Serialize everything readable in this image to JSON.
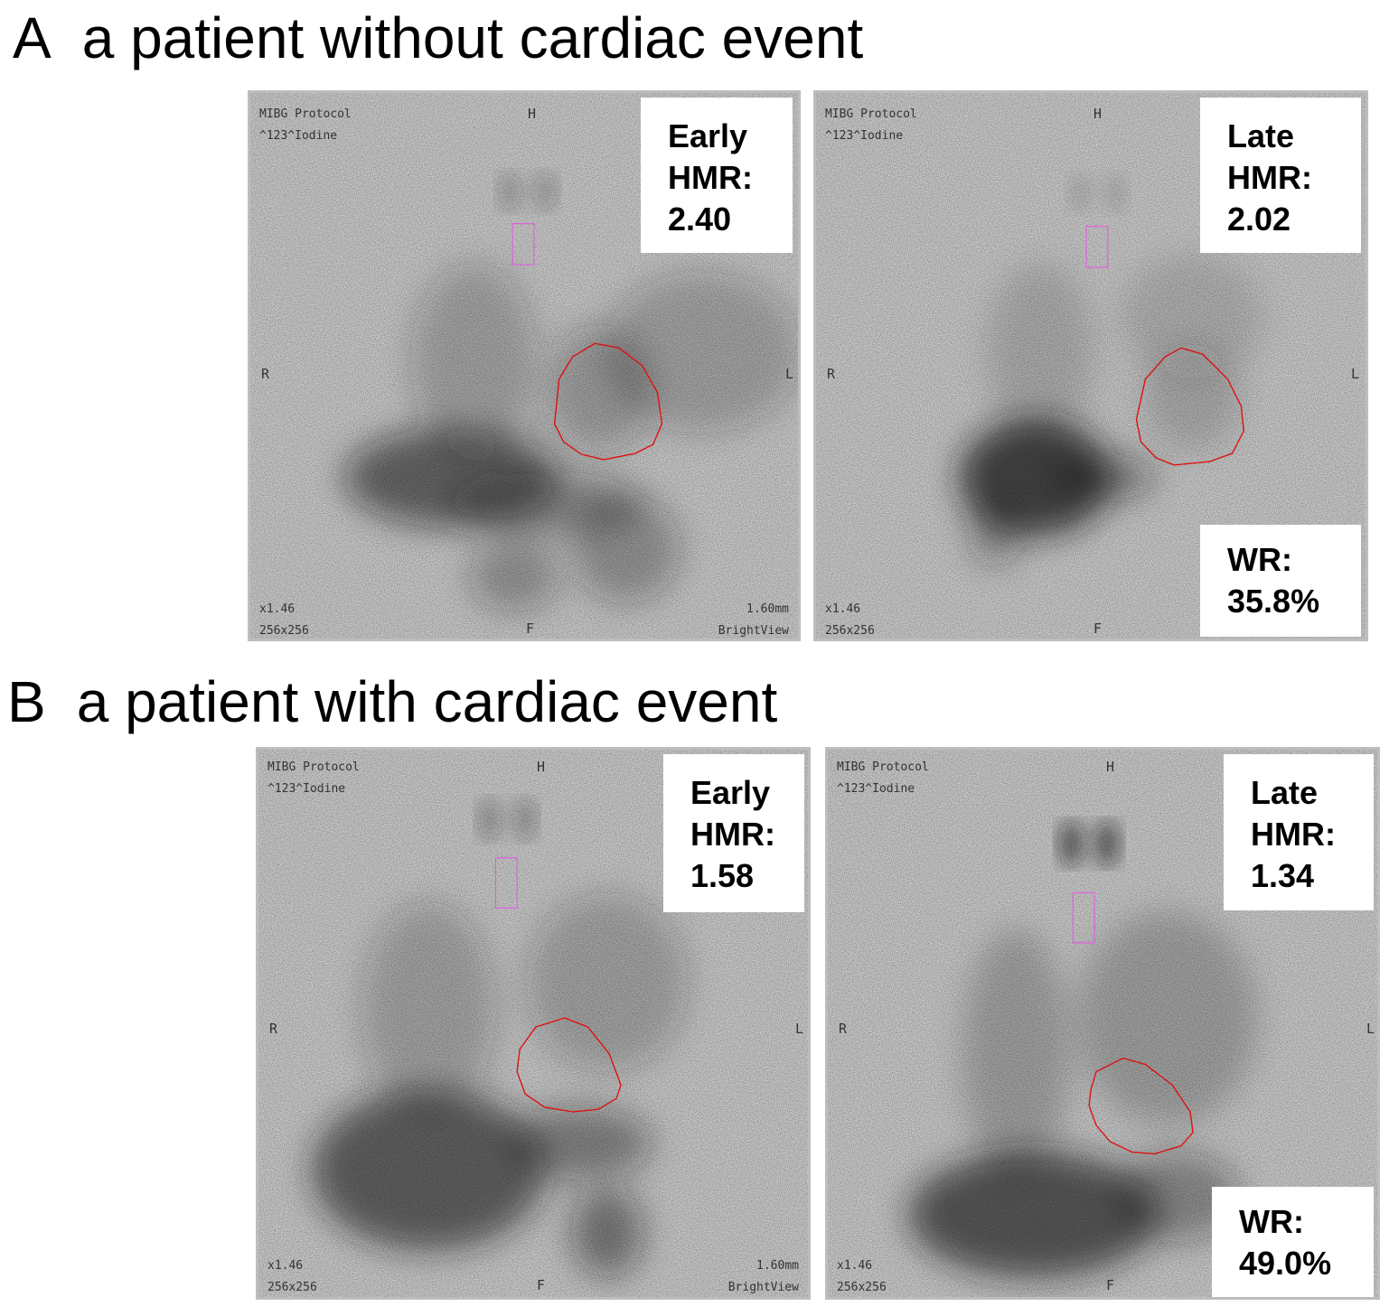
{
  "panels": [
    {
      "letter": "A",
      "caption": "a patient without cardiac event",
      "early": {
        "protocol": "MIBG Protocol",
        "isotope": "^123^Iodine",
        "top": "H",
        "bottom": "F",
        "right_side": "R",
        "left_side": "L",
        "zoom": "x1.46",
        "matrix": "256x256",
        "pixel_size": "1.60mm",
        "device": "BrightView",
        "phase": "Early",
        "metric": "HMR:",
        "value": "2.40"
      },
      "late": {
        "protocol": "MIBG Protocol",
        "isotope": "^123^Iodine",
        "top": "H",
        "bottom": "F",
        "right_side": "R",
        "left_side": "L",
        "zoom": "x1.46",
        "matrix": "256x256",
        "phase": "Late",
        "metric": "HMR:",
        "value": "2.02",
        "wr_label": "WR:",
        "wr_value": "35.8%"
      }
    },
    {
      "letter": "B",
      "caption": "a patient with cardiac event",
      "early": {
        "protocol": "MIBG Protocol",
        "isotope": "^123^Iodine",
        "top": "H",
        "bottom": "F",
        "right_side": "R",
        "left_side": "L",
        "zoom": "x1.46",
        "matrix": "256x256",
        "pixel_size": "1.60mm",
        "device": "BrightView",
        "phase": "Early",
        "metric": "HMR:",
        "value": "1.58"
      },
      "late": {
        "protocol": "MIBG Protocol",
        "isotope": "^123^Iodine",
        "top": "H",
        "bottom": "F",
        "right_side": "R",
        "left_side": "L",
        "zoom": "x1.46",
        "matrix": "256x256",
        "phase": "Late",
        "metric": "HMR:",
        "value": "1.34",
        "wr_label": "WR:",
        "wr_value": "49.0%"
      }
    }
  ],
  "colors": {
    "heart_roi": "#dd1111",
    "mediastinum_roi": "#e060e0",
    "background": "#e7e7e7",
    "uptake": "#1a1a1a"
  }
}
